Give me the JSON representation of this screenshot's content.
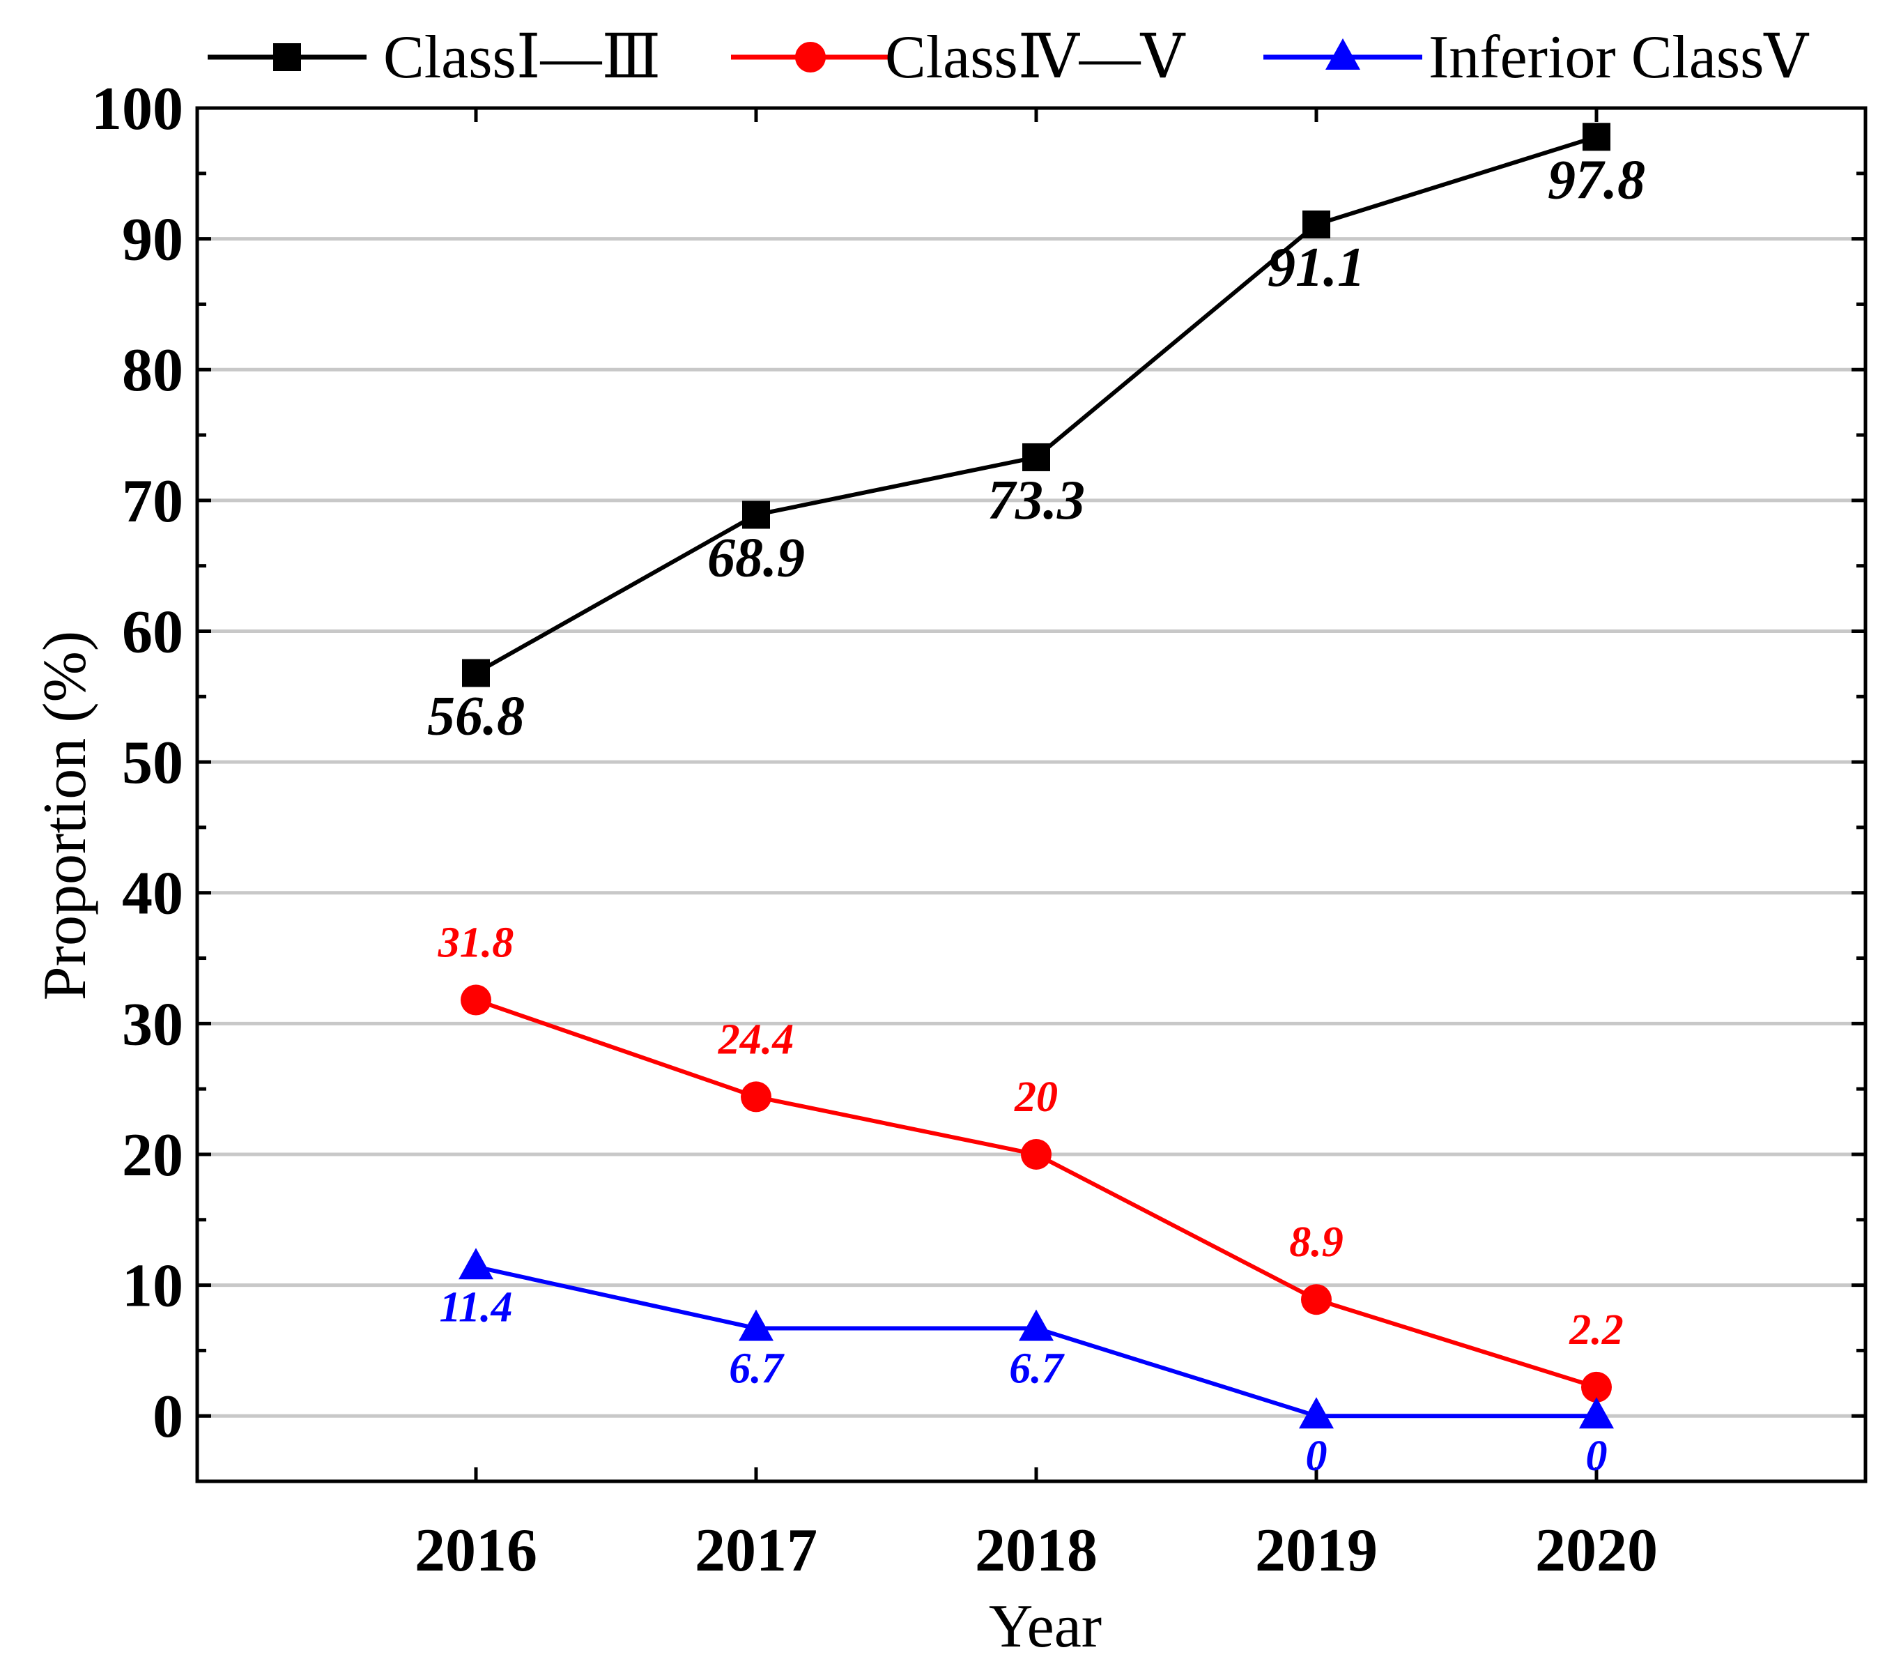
{
  "chart_data": {
    "type": "line",
    "title": "",
    "xlabel": "Year",
    "ylabel": "Proportion (%)",
    "categories": [
      "2016",
      "2017",
      "2018",
      "2019",
      "2020"
    ],
    "ylim": [
      -5,
      100
    ],
    "yticks": [
      0,
      10,
      20,
      30,
      40,
      50,
      60,
      70,
      80,
      90,
      100
    ],
    "grid": true,
    "legend_position": "top",
    "series": [
      {
        "name": "ClassⅠ—Ⅲ",
        "color": "#000000",
        "marker": "square",
        "values": [
          56.8,
          68.9,
          73.3,
          91.1,
          97.8
        ],
        "labels": [
          "56.8",
          "68.9",
          "73.3",
          "91.1",
          "97.8"
        ],
        "label_position": "below",
        "label_size": "large"
      },
      {
        "name": "ClassⅣ—Ⅴ",
        "color": "#ff0000",
        "marker": "circle",
        "values": [
          31.8,
          24.4,
          20,
          8.9,
          2.2
        ],
        "labels": [
          "31.8",
          "24.4",
          "20",
          "8.9",
          "2.2"
        ],
        "label_position": "above",
        "label_size": "small"
      },
      {
        "name": "Inferior ClassⅤ",
        "color": "#0000ff",
        "marker": "triangle",
        "values": [
          11.4,
          6.7,
          6.7,
          0,
          0
        ],
        "labels": [
          "11.4",
          "6.7",
          "6.7",
          "0",
          "0"
        ],
        "label_position": "below",
        "label_size": "small"
      }
    ]
  }
}
